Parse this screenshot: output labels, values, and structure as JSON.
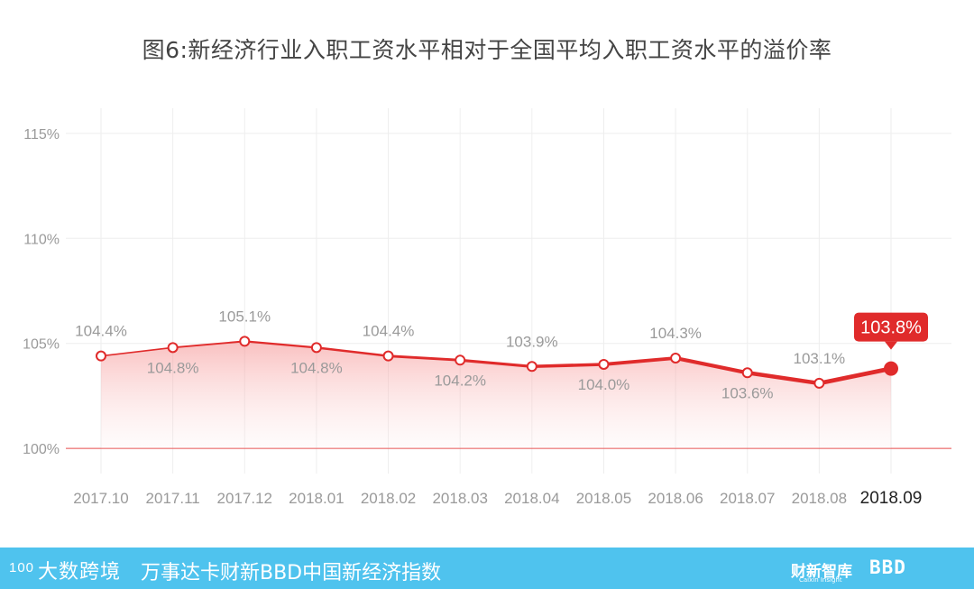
{
  "title": "图6:新经济行业入职工资水平相对于全国平均入职工资水平的溢价率",
  "chart_data": {
    "type": "area",
    "title": "图6:新经济行业入职工资水平相对于全国平均入职工资水平的溢价率",
    "x": [
      "2017.10",
      "2017.11",
      "2017.12",
      "2018.01",
      "2018.02",
      "2018.03",
      "2018.04",
      "2018.05",
      "2018.06",
      "2018.07",
      "2018.08",
      "2018.09"
    ],
    "values": [
      104.4,
      104.8,
      105.1,
      104.8,
      104.4,
      104.2,
      103.9,
      104.0,
      104.3,
      103.6,
      103.1,
      103.8
    ],
    "labels": [
      "104.4%",
      "104.8%",
      "105.1%",
      "104.8%",
      "104.4%",
      "104.2%",
      "103.9%",
      "104.0%",
      "104.3%",
      "103.6%",
      "103.1%",
      "103.8%"
    ],
    "yticks": [
      "100%",
      "105%",
      "110%",
      "115%"
    ],
    "ytick_values": [
      100,
      105,
      110,
      115
    ],
    "ylim": [
      98.8,
      116.2
    ],
    "highlight_index": 11,
    "grid": true,
    "colors": {
      "line": "#e02b2b",
      "area": "#f7a9a9",
      "highlight": "#e02b2b",
      "axis_text": "#9a9a9a",
      "grid": "#eeeeee"
    }
  },
  "footer": {
    "logo_text": "大数跨境",
    "logo_number": "100",
    "text": "万事达卡财新BBD中国新经济指数",
    "brand_caixin": "财新智库",
    "brand_caixin_sub": "Caixin Insight",
    "brand_bbd": "BBD"
  }
}
